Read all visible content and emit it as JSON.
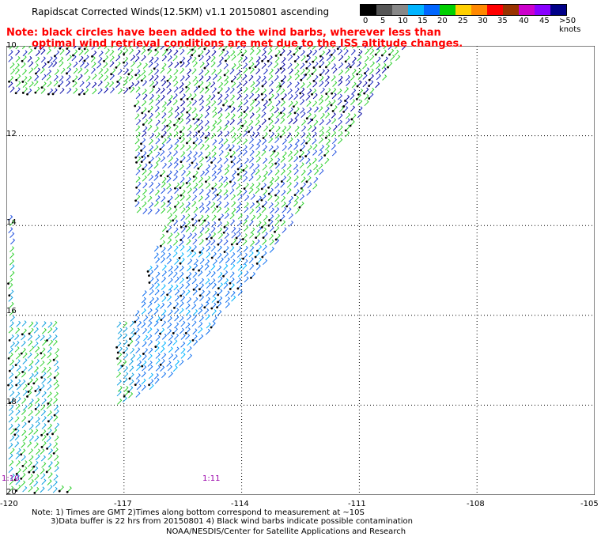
{
  "title": "Rapidscat Corrected Winds(12.5KM) v1.1 20150801 ascending",
  "note": {
    "line1": "Note: black circles have been added to the wind barbs, wherever less than",
    "line2": "optimal wind retrieval conditions are met due to the ISS altitude changes."
  },
  "legend": {
    "labels": [
      "0",
      "5",
      "10",
      "15",
      "20",
      "25",
      "30",
      "35",
      "40",
      "45",
      ">50 knots"
    ],
    "colors": [
      "#000000",
      "#555555",
      "#888888",
      "#00b4ff",
      "#0066ff",
      "#00d000",
      "#ffd000",
      "#ff8800",
      "#ff0000",
      "#993300",
      "#cc00cc",
      "#8800ff",
      "#000088"
    ]
  },
  "axes": {
    "x_ticks": [
      "-120",
      "-117",
      "-114",
      "-111",
      "-108",
      "-105"
    ],
    "y_ticks": [
      "10",
      "12",
      "14",
      "16",
      "18",
      "20"
    ]
  },
  "time_labels": [
    "1:10",
    "1:11"
  ],
  "footnote": {
    "line1": "Note: 1) Times are GMT 2)Times along bottom correspond to measurement at ~10S",
    "line2": "3)Data buffer is 22 hrs from 20150801 4) Black wind barbs indicate possible contamination",
    "line3": "NOAA/NESDIS/Center for Satellite Applications and Research"
  }
}
